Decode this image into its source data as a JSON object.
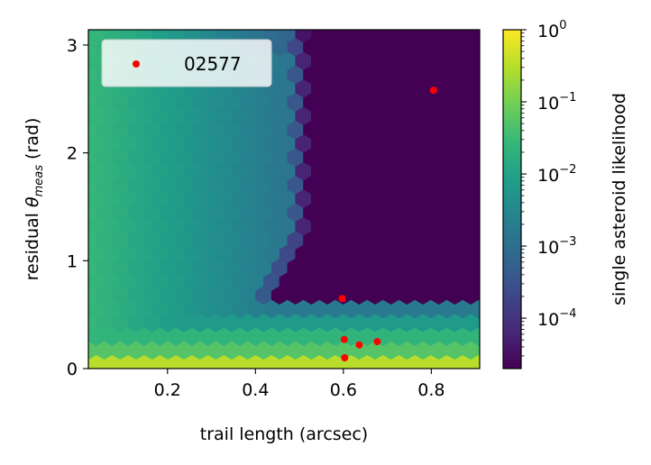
{
  "chart_data": {
    "type": "heatmap",
    "subtype": "hexbin",
    "xlabel": "trail length (arcsec)",
    "ylabel_prefix": "residual ",
    "ylabel_theta": "θ",
    "ylabel_sub": "meas",
    "ylabel_suffix": " (rad)",
    "xlim": [
      0.02,
      0.91
    ],
    "ylim": [
      0,
      3.14159
    ],
    "xticks": [
      {
        "value": 0.2,
        "label": "0.2"
      },
      {
        "value": 0.4,
        "label": "0.4"
      },
      {
        "value": 0.6,
        "label": "0.6"
      },
      {
        "value": 0.8,
        "label": "0.8"
      }
    ],
    "yticks": [
      {
        "value": 0,
        "label": "0"
      },
      {
        "value": 1,
        "label": "1"
      },
      {
        "value": 2,
        "label": "2"
      },
      {
        "value": 3,
        "label": "3"
      }
    ],
    "colorbar": {
      "label": "single asteroid likelihood",
      "scale": "log",
      "range": [
        2e-05,
        1
      ],
      "colormap": "viridis",
      "major_ticks": [
        {
          "exp": 0,
          "label_base": "10",
          "label_exp": "0"
        },
        {
          "exp": -1,
          "label_base": "10",
          "label_exp": "−1"
        },
        {
          "exp": -2,
          "label_base": "10",
          "label_exp": "−2"
        },
        {
          "exp": -3,
          "label_base": "10",
          "label_exp": "−3"
        },
        {
          "exp": -4,
          "label_base": "10",
          "label_exp": "−4"
        }
      ]
    },
    "legend": {
      "placement": "top-left",
      "entries": [
        {
          "label": "02577",
          "color": "#ff0000"
        }
      ]
    },
    "points": [
      {
        "x": 0.805,
        "y": 2.58
      },
      {
        "x": 0.597,
        "y": 0.65
      },
      {
        "x": 0.602,
        "y": 0.27
      },
      {
        "x": 0.636,
        "y": 0.22
      },
      {
        "x": 0.677,
        "y": 0.25
      },
      {
        "x": 0.603,
        "y": 0.1
      }
    ],
    "point_color": "#ff0000"
  }
}
